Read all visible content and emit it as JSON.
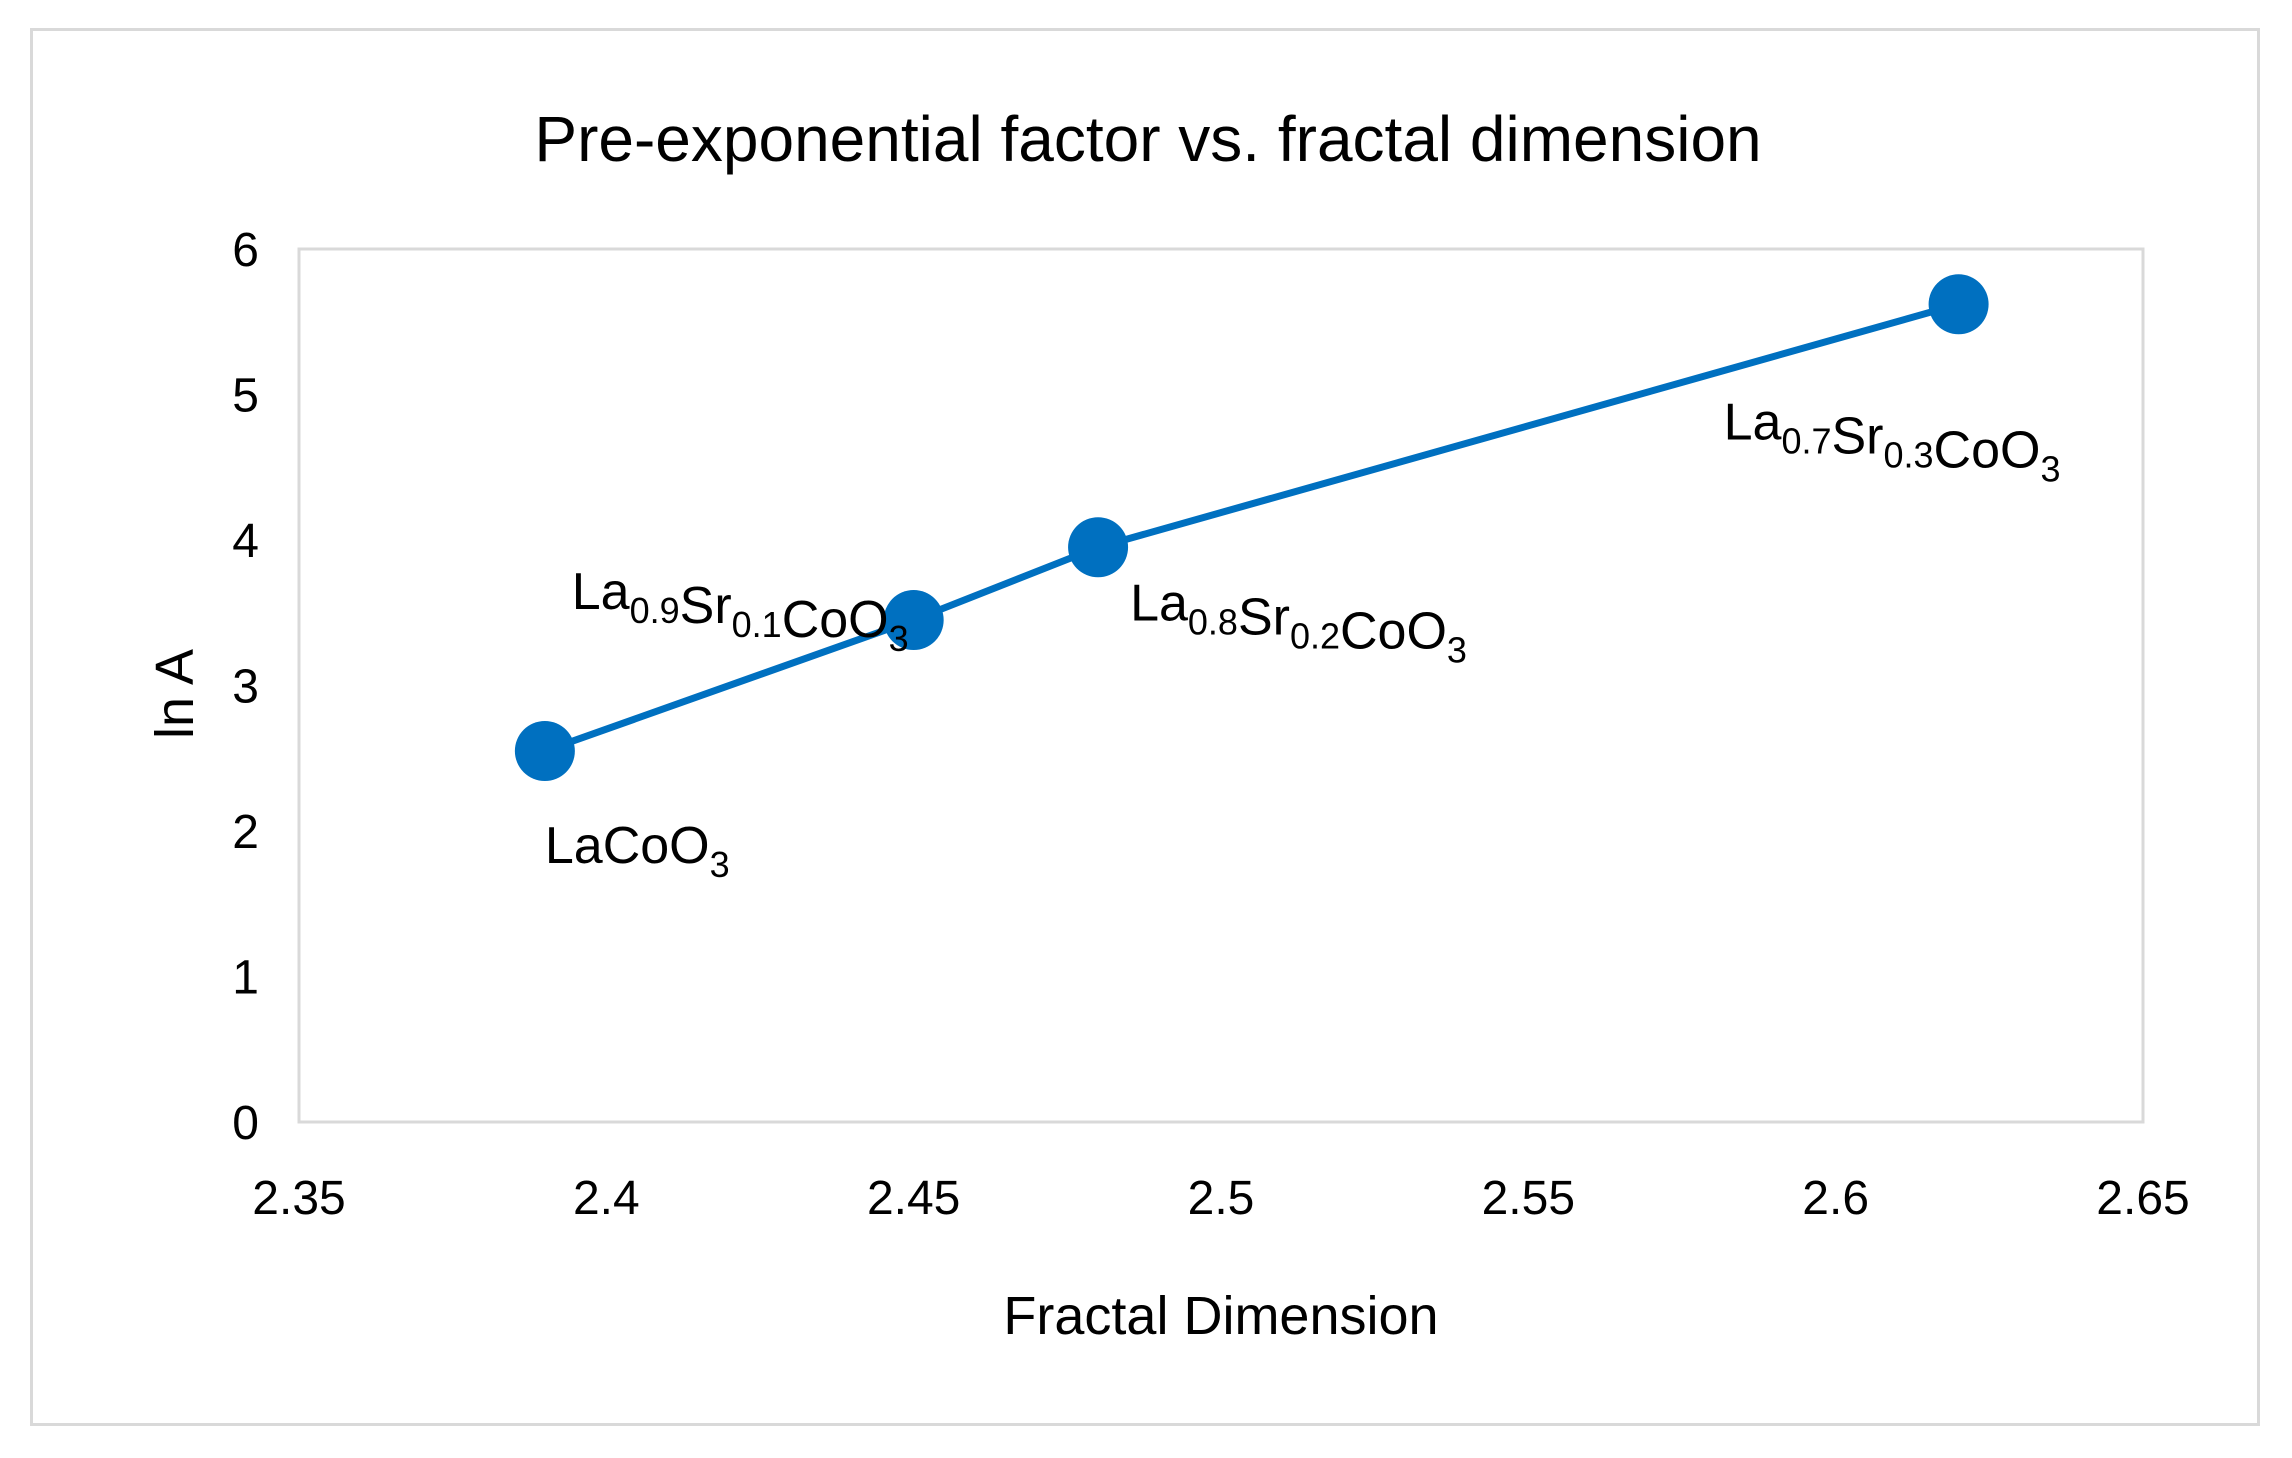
{
  "chart_data": {
    "type": "line",
    "title": "Pre-exponential factor vs. fractal dimension",
    "xlabel": "Fractal Dimension",
    "ylabel": "ln A",
    "xlim": [
      2.35,
      2.65
    ],
    "ylim": [
      0,
      6
    ],
    "x_ticks": [
      "2.35",
      "2.4",
      "2.45",
      "2.5",
      "2.55",
      "2.6",
      "2.65"
    ],
    "y_ticks": [
      "0",
      "1",
      "2",
      "3",
      "4",
      "5",
      "6"
    ],
    "grid": false,
    "legend": "none",
    "series": [
      {
        "color": "#0070c0",
        "points": [
          {
            "x": 2.39,
            "y": 2.55,
            "label": {
              "parts": [
                {
                  "t": "LaCoO"
                },
                {
                  "t": "3",
                  "sub": true
                }
              ]
            }
          },
          {
            "x": 2.45,
            "y": 3.45,
            "label": {
              "parts": [
                {
                  "t": "La"
                },
                {
                  "t": "0.9",
                  "sub": true
                },
                {
                  "t": "Sr"
                },
                {
                  "t": "0.1",
                  "sub": true
                },
                {
                  "t": "CoO"
                },
                {
                  "t": "3",
                  "sub": true
                }
              ]
            }
          },
          {
            "x": 2.48,
            "y": 3.95,
            "label": {
              "parts": [
                {
                  "t": "La"
                },
                {
                  "t": "0.8",
                  "sub": true
                },
                {
                  "t": "Sr"
                },
                {
                  "t": "0.2",
                  "sub": true
                },
                {
                  "t": "CoO"
                },
                {
                  "t": "3",
                  "sub": true
                }
              ]
            }
          },
          {
            "x": 2.62,
            "y": 5.62,
            "label": {
              "parts": [
                {
                  "t": "La"
                },
                {
                  "t": "0.7",
                  "sub": true
                },
                {
                  "t": "Sr"
                },
                {
                  "t": "0.3",
                  "sub": true
                },
                {
                  "t": "CoO"
                },
                {
                  "t": "3",
                  "sub": true
                }
              ]
            }
          }
        ]
      }
    ]
  }
}
